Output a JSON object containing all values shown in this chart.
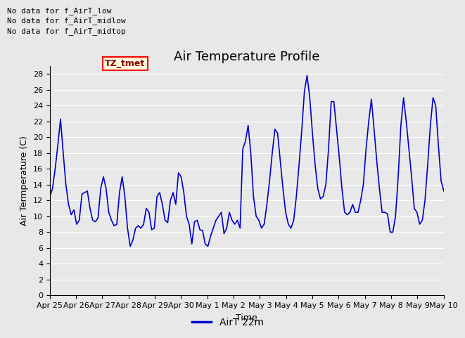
{
  "title": "Air Temperature Profile",
  "xlabel": "Time",
  "ylabel": "Air Termperature (C)",
  "legend_label": "AirT 22m",
  "annotations": [
    "No data for f_AirT_low",
    "No data for f_AirT_midlow",
    "No data for f_AirT_midtop"
  ],
  "legend_box_label": "TZ_tmet",
  "ylim": [
    0,
    29
  ],
  "yticks": [
    0,
    2,
    4,
    6,
    8,
    10,
    12,
    14,
    16,
    18,
    20,
    22,
    24,
    26,
    28
  ],
  "line_color": "#0000cc",
  "background_color": "#e8e8e8",
  "plot_bg_color": "#e8e8e8",
  "x_labels": [
    "Apr 25",
    "Apr 26",
    "Apr 27",
    "Apr 28",
    "Apr 29",
    "Apr 30",
    "May 1",
    "May 2",
    "May 3",
    "May 4",
    "May 5",
    "May 6",
    "May 7",
    "May 8",
    "May 9",
    "May 10"
  ],
  "y_data": [
    12.5,
    13.5,
    16.0,
    19.0,
    22.3,
    18.0,
    14.0,
    11.5,
    10.2,
    10.8,
    9.0,
    9.5,
    12.8,
    13.0,
    13.2,
    11.0,
    9.5,
    9.3,
    9.8,
    13.5,
    15.0,
    13.5,
    10.5,
    9.5,
    8.8,
    9.0,
    13.0,
    15.0,
    12.5,
    8.5,
    6.2,
    7.0,
    8.5,
    8.8,
    8.5,
    9.0,
    11.0,
    10.5,
    8.3,
    8.5,
    12.5,
    13.0,
    11.5,
    9.5,
    9.2,
    12.0,
    13.0,
    11.5,
    15.5,
    15.0,
    13.0,
    10.0,
    9.0,
    6.5,
    9.3,
    9.5,
    8.3,
    8.2,
    6.5,
    6.2,
    7.5,
    8.5,
    9.5,
    10.0,
    10.5,
    7.8,
    8.5,
    10.5,
    9.5,
    9.0,
    9.5,
    8.5,
    18.5,
    19.5,
    21.5,
    18.0,
    12.5,
    10.0,
    9.5,
    8.5,
    9.0,
    11.5,
    14.5,
    18.0,
    21.0,
    20.5,
    17.0,
    13.5,
    10.5,
    9.0,
    8.5,
    9.5,
    12.5,
    16.5,
    20.8,
    25.8,
    27.8,
    25.0,
    20.5,
    16.5,
    13.5,
    12.2,
    12.5,
    14.0,
    18.5,
    24.5,
    24.5,
    21.0,
    17.5,
    13.5,
    10.5,
    10.2,
    10.5,
    11.5,
    10.5,
    10.5,
    12.0,
    14.0,
    18.5,
    22.0,
    24.8,
    21.0,
    17.0,
    13.5,
    10.5,
    10.5,
    10.3,
    8.0,
    8.0,
    10.0,
    15.0,
    21.5,
    25.0,
    22.0,
    18.5,
    15.0,
    11.0,
    10.5,
    9.0,
    9.5,
    12.0,
    16.5,
    21.5,
    25.0,
    24.0,
    19.0,
    14.5,
    13.2
  ],
  "title_fontsize": 13,
  "axis_fontsize": 9,
  "tick_fontsize": 8,
  "annot_fontsize": 8,
  "legend_fontsize": 10
}
